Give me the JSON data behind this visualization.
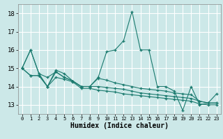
{
  "xlabel": "Humidex (Indice chaleur)",
  "bg_color": "#cce8e8",
  "grid_color": "#ffffff",
  "line_color": "#1a7a6e",
  "xlim": [
    -0.5,
    23.5
  ],
  "ylim": [
    12.5,
    18.5
  ],
  "yticks": [
    13,
    14,
    15,
    16,
    17,
    18
  ],
  "xticks": [
    0,
    1,
    2,
    3,
    4,
    5,
    6,
    7,
    8,
    9,
    10,
    11,
    12,
    13,
    14,
    15,
    16,
    17,
    18,
    19,
    20,
    21,
    22,
    23
  ],
  "series": [
    [
      15.0,
      16.0,
      14.7,
      14.0,
      14.9,
      14.7,
      14.3,
      14.0,
      14.0,
      14.5,
      15.9,
      16.0,
      16.5,
      18.1,
      16.0,
      16.0,
      14.0,
      14.0,
      13.75,
      12.7,
      14.0,
      13.0,
      13.1,
      13.1
    ],
    [
      15.0,
      16.0,
      14.7,
      14.5,
      14.8,
      14.5,
      14.3,
      14.0,
      14.0,
      14.45,
      14.35,
      14.2,
      14.1,
      14.0,
      13.9,
      13.85,
      13.8,
      13.75,
      13.65,
      13.6,
      13.55,
      13.2,
      13.1,
      13.6
    ],
    [
      15.0,
      14.6,
      14.6,
      14.0,
      14.8,
      14.5,
      14.3,
      14.0,
      14.0,
      14.0,
      13.95,
      13.9,
      13.85,
      13.75,
      13.65,
      13.6,
      13.55,
      13.5,
      13.45,
      13.4,
      13.35,
      13.2,
      13.1,
      13.1
    ],
    [
      15.0,
      14.6,
      14.6,
      14.0,
      14.5,
      14.4,
      14.25,
      13.9,
      13.9,
      13.8,
      13.75,
      13.7,
      13.6,
      13.55,
      13.5,
      13.45,
      13.4,
      13.35,
      13.3,
      13.25,
      13.2,
      13.05,
      13.0,
      13.0
    ]
  ]
}
